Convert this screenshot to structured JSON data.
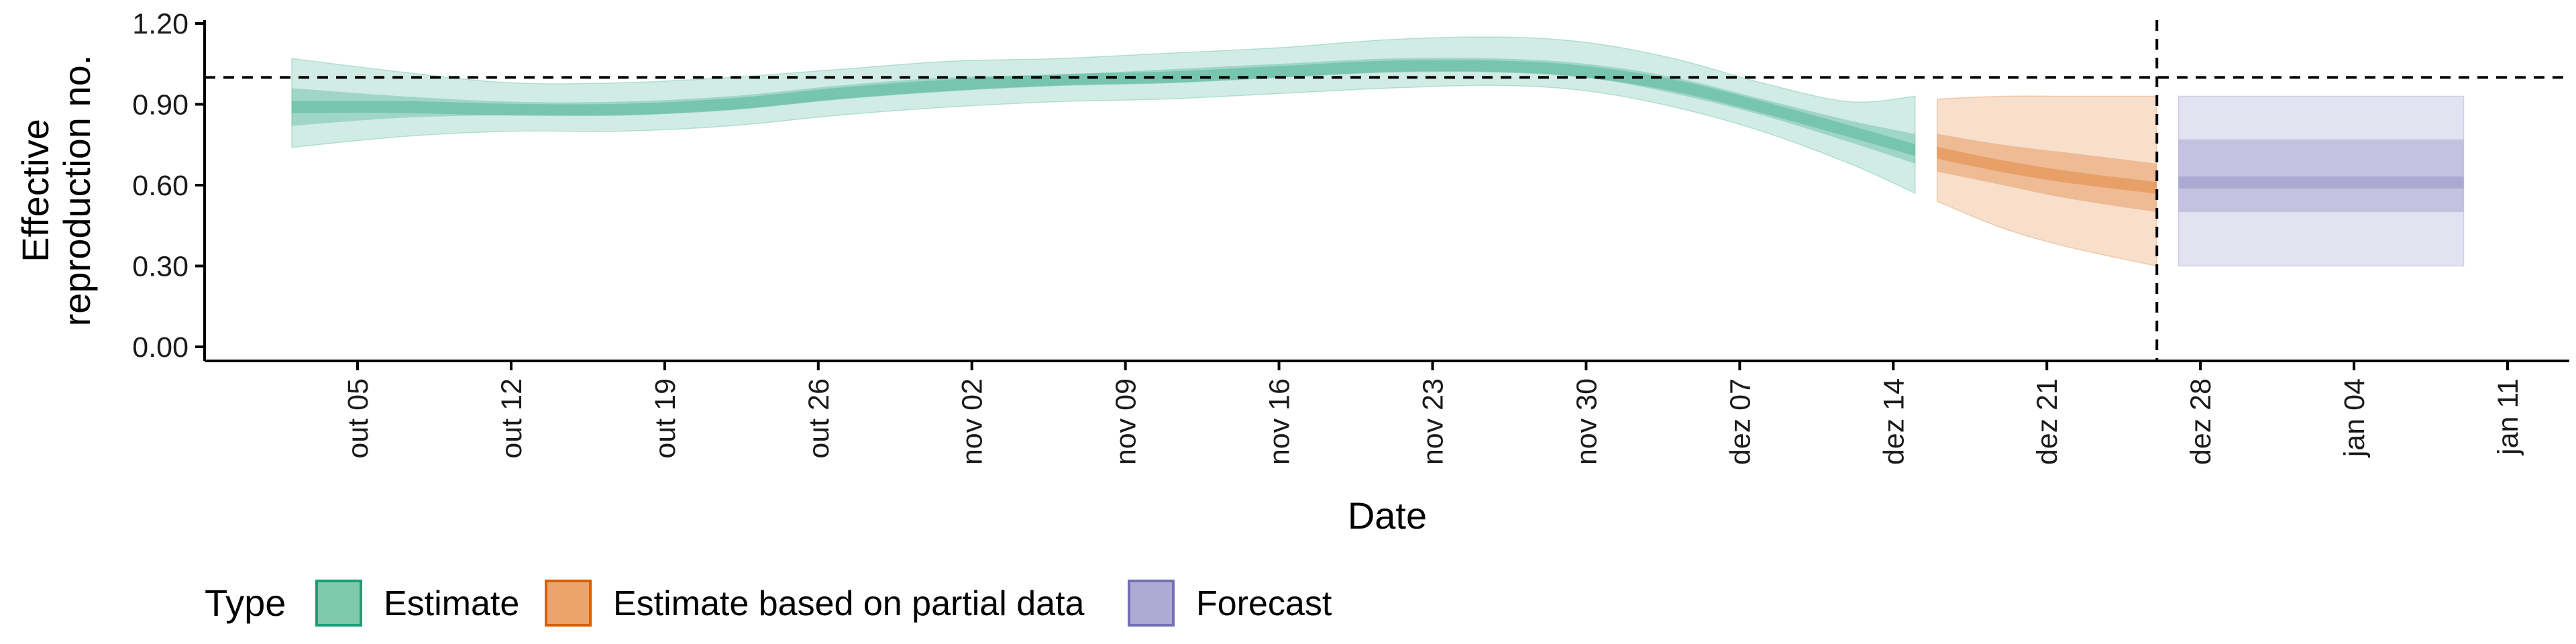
{
  "chart_data": {
    "type": "area",
    "title": "",
    "xlabel": "Date",
    "ylabel": [
      "Effective",
      "reproduction no."
    ],
    "ylim": [
      0,
      1.2
    ],
    "xlim": [
      "2020-09-28",
      "2021-01-13"
    ],
    "y_ticks": [
      "0.00",
      "0.30",
      "0.60",
      "0.90",
      "1.20"
    ],
    "x_ticks": [
      {
        "date": "2020-10-05",
        "label": "out 05"
      },
      {
        "date": "2020-10-12",
        "label": "out 12"
      },
      {
        "date": "2020-10-19",
        "label": "out 19"
      },
      {
        "date": "2020-10-26",
        "label": "out 26"
      },
      {
        "date": "2020-11-02",
        "label": "nov 02"
      },
      {
        "date": "2020-11-09",
        "label": "nov 09"
      },
      {
        "date": "2020-11-16",
        "label": "nov 16"
      },
      {
        "date": "2020-11-23",
        "label": "nov 23"
      },
      {
        "date": "2020-11-30",
        "label": "nov 30"
      },
      {
        "date": "2020-12-07",
        "label": "dez 07"
      },
      {
        "date": "2020-12-14",
        "label": "dez 14"
      },
      {
        "date": "2020-12-21",
        "label": "dez 21"
      },
      {
        "date": "2020-12-28",
        "label": "dez 28"
      },
      {
        "date": "2021-01-04",
        "label": "jan 04"
      },
      {
        "date": "2021-01-11",
        "label": "jan 11"
      }
    ],
    "reference_line": {
      "y": 1.0,
      "style": "dashed"
    },
    "forecast_line": {
      "date": "2020-12-26",
      "style": "dashed"
    },
    "grid": false,
    "legend": {
      "title": "Type",
      "position": "bottom",
      "entries": [
        {
          "label": "Estimate",
          "fill": "#7fcaac",
          "stroke": "#1b9e77"
        },
        {
          "label": "Estimate based on partial data",
          "fill": "#eba46c",
          "stroke": "#d95f02"
        },
        {
          "label": "Forecast",
          "fill": "#afaad4",
          "stroke": "#7570b3"
        }
      ]
    },
    "series": [
      {
        "type_label": "Estimate",
        "color": "#1b9e77",
        "x": [
          "2020-10-02",
          "2020-10-07",
          "2020-10-12",
          "2020-10-17",
          "2020-10-22",
          "2020-10-27",
          "2020-11-01",
          "2020-11-06",
          "2020-11-11",
          "2020-11-16",
          "2020-11-21",
          "2020-11-26",
          "2020-11-30",
          "2020-12-04",
          "2020-12-08",
          "2020-12-12",
          "2020-12-15"
        ],
        "lower90": [
          0.74,
          0.78,
          0.8,
          0.8,
          0.82,
          0.86,
          0.89,
          0.91,
          0.92,
          0.94,
          0.96,
          0.97,
          0.95,
          0.89,
          0.8,
          0.68,
          0.57
        ],
        "lower50": [
          0.82,
          0.85,
          0.86,
          0.86,
          0.88,
          0.92,
          0.95,
          0.97,
          0.98,
          1.0,
          1.02,
          1.02,
          1.0,
          0.94,
          0.86,
          0.76,
          0.68
        ],
        "median": [
          0.89,
          0.89,
          0.88,
          0.88,
          0.9,
          0.94,
          0.97,
          0.99,
          1.0,
          1.02,
          1.04,
          1.04,
          1.02,
          0.97,
          0.89,
          0.8,
          0.73
        ],
        "upper50": [
          0.96,
          0.93,
          0.91,
          0.91,
          0.93,
          0.97,
          1.0,
          1.01,
          1.03,
          1.05,
          1.07,
          1.07,
          1.05,
          1.0,
          0.92,
          0.84,
          0.79
        ],
        "upper90": [
          1.07,
          1.02,
          0.98,
          0.98,
          1.0,
          1.03,
          1.06,
          1.07,
          1.09,
          1.11,
          1.14,
          1.15,
          1.13,
          1.07,
          0.98,
          0.91,
          0.93
        ]
      },
      {
        "type_label": "Estimate based on partial data",
        "color": "#d95f02",
        "x": [
          "2020-12-16",
          "2020-12-19",
          "2020-12-22",
          "2020-12-26"
        ],
        "lower90": [
          0.54,
          0.44,
          0.37,
          0.3
        ],
        "lower50": [
          0.65,
          0.6,
          0.55,
          0.5
        ],
        "median": [
          0.72,
          0.67,
          0.63,
          0.59
        ],
        "upper50": [
          0.79,
          0.75,
          0.72,
          0.68
        ],
        "upper90": [
          0.92,
          0.93,
          0.93,
          0.93
        ]
      },
      {
        "type_label": "Forecast",
        "color": "#7570b3",
        "x": [
          "2020-12-27",
          "2021-01-09"
        ],
        "lower90": [
          0.3,
          0.3
        ],
        "lower50": [
          0.5,
          0.5
        ],
        "median": [
          0.61,
          0.61
        ],
        "upper50": [
          0.77,
          0.77
        ],
        "upper90": [
          0.93,
          0.93
        ]
      }
    ]
  }
}
